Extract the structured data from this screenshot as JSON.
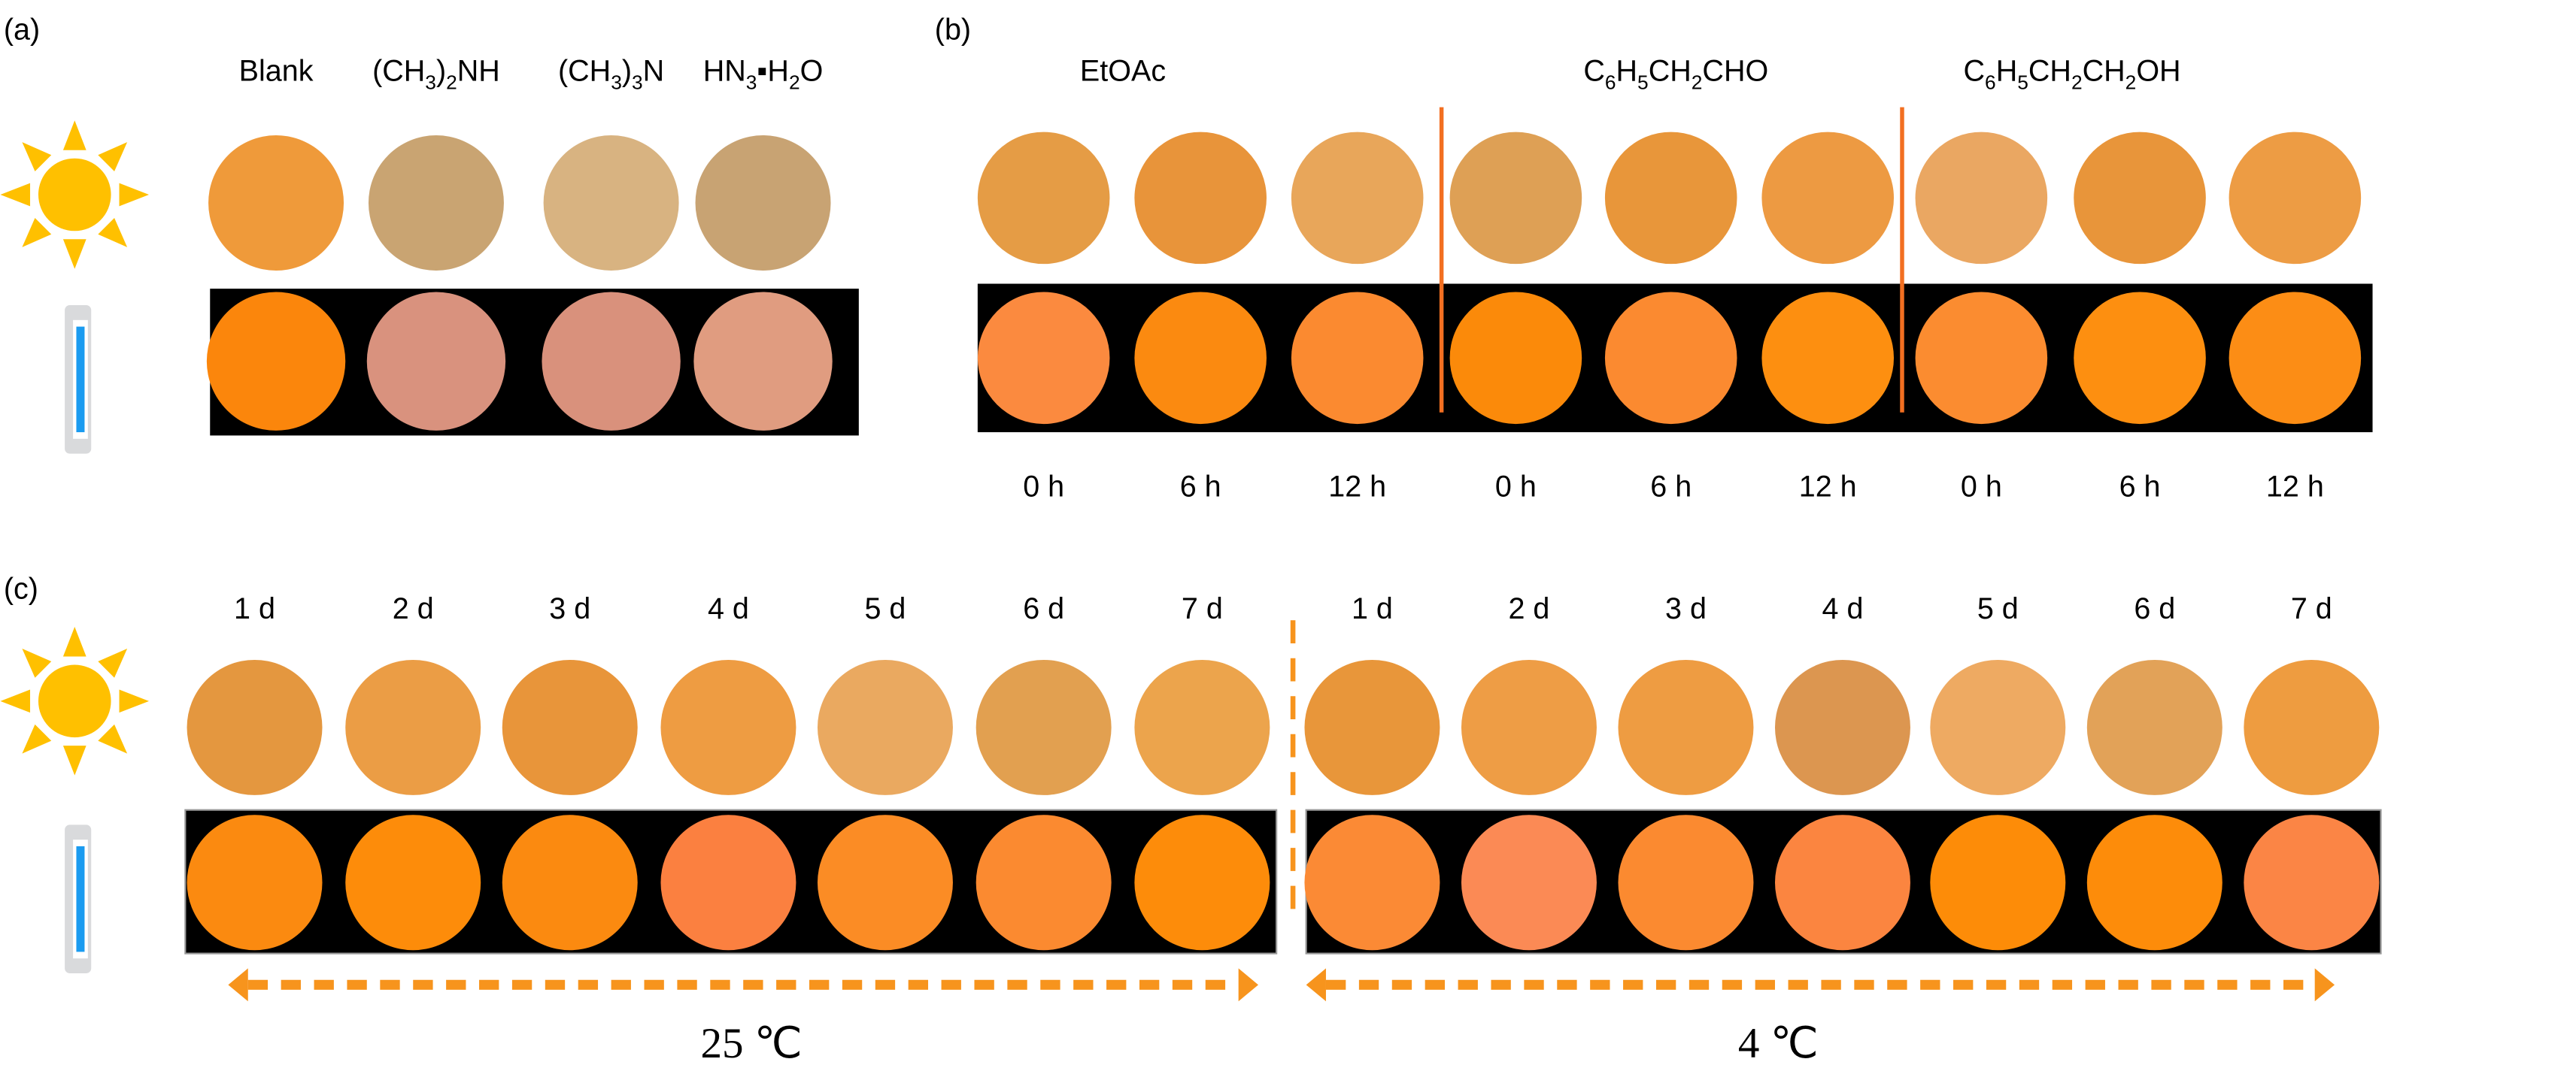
{
  "panels": {
    "a": "(a)",
    "b": "(b)",
    "c": "(c)"
  },
  "accent_color": "#f7941d",
  "icons": {
    "daylight": "sun-icon",
    "uv": "uv-lamp-icon"
  },
  "panel_a": {
    "headers": [
      [
        [
          "Blank",
          0
        ]
      ],
      [
        [
          "(CH",
          0
        ],
        [
          "3",
          1
        ],
        [
          ")",
          0
        ],
        [
          "2",
          1
        ],
        [
          "NH",
          0
        ]
      ],
      [
        [
          "(CH",
          0
        ],
        [
          "3",
          1
        ],
        [
          ")",
          0
        ],
        [
          "3",
          1
        ],
        [
          "N",
          0
        ]
      ],
      [
        [
          "HN",
          0
        ],
        [
          "3",
          1
        ],
        [
          "▪H",
          0
        ],
        [
          "2",
          1
        ],
        [
          "O",
          0
        ]
      ]
    ],
    "daylight_colors": [
      "#ef9a3a",
      "#c9a472",
      "#d8b381",
      "#c8a373"
    ],
    "uv_colors": [
      "#fb860c",
      "#d9927e",
      "#d9917c",
      "#e09c80"
    ]
  },
  "panel_b": {
    "headers": [
      [
        [
          "EtOAc",
          0
        ]
      ],
      [
        [
          "C",
          0
        ],
        [
          "6",
          1
        ],
        [
          "H",
          0
        ],
        [
          "5",
          1
        ],
        [
          "CH",
          0
        ],
        [
          "2",
          1
        ],
        [
          "CHO",
          0
        ]
      ],
      [
        [
          "C",
          0
        ],
        [
          "6",
          1
        ],
        [
          "H",
          0
        ],
        [
          "5",
          1
        ],
        [
          "CH",
          0
        ],
        [
          "2",
          1
        ],
        [
          "CH",
          0
        ],
        [
          "2",
          1
        ],
        [
          "OH",
          0
        ]
      ]
    ],
    "times": [
      "0 h",
      "6 h",
      "12 h",
      "0 h",
      "6 h",
      "12 h",
      "0 h",
      "6 h",
      "12 h"
    ],
    "daylight_colors": [
      "#e59c45",
      "#e8943a",
      "#e8a65a",
      "#dea055",
      "#e8963a",
      "#ed9a42",
      "#eaa762",
      "#e8953a",
      "#ed9c44"
    ],
    "uv_colors": [
      "#fb8a3f",
      "#fb8a10",
      "#fb8a30",
      "#fb8a0a",
      "#fb8a30",
      "#fd8f10",
      "#fb8c30",
      "#fd8f10",
      "#fc8d15"
    ]
  },
  "panel_c": {
    "days_25": [
      "1 d",
      "2 d",
      "3 d",
      "4 d",
      "5 d",
      "6 d",
      "7 d"
    ],
    "days_4": [
      "1 d",
      "2 d",
      "3 d",
      "4 d",
      "5 d",
      "6 d",
      "7 d"
    ],
    "temp_25": "25 ℃",
    "temp_4": "4 ℃",
    "daylight_colors_25": [
      "#e4973f",
      "#eb9d45",
      "#e8953a",
      "#ee9c42",
      "#eaa960",
      "#e2a050",
      "#eca44c"
    ],
    "uv_colors_25": [
      "#fb8a10",
      "#fd8c0a",
      "#fb8a10",
      "#fb8040",
      "#fb8c25",
      "#fb8a30",
      "#fd8c0a"
    ],
    "daylight_colors_4": [
      "#e8963a",
      "#ee9d45",
      "#ee9c42",
      "#dc9650",
      "#eeaa62",
      "#e2a258",
      "#ee9c40"
    ],
    "uv_colors_4": [
      "#fb8a35",
      "#fb8a55",
      "#fb8a30",
      "#fb8540",
      "#fd8c08",
      "#fd8c0a",
      "#fb8545"
    ]
  }
}
